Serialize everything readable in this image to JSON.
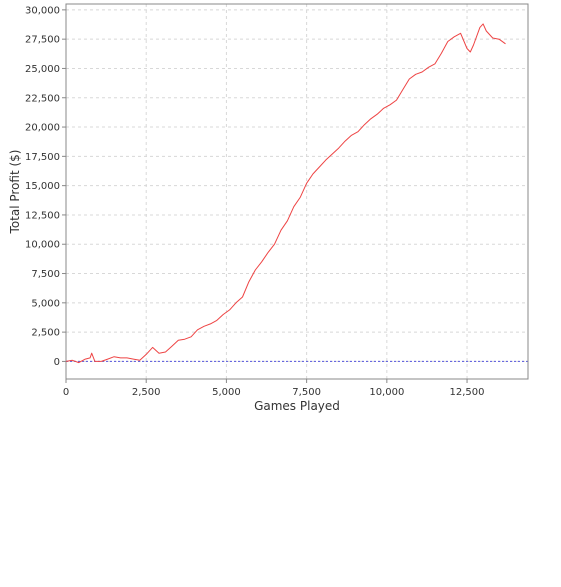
{
  "chart_data": {
    "type": "line",
    "title": "",
    "xlabel": "Games Played",
    "ylabel": "Total Profit ($)",
    "xlim": [
      0,
      14400
    ],
    "ylim": [
      -1500,
      30500
    ],
    "x_ticks": [
      0,
      2500,
      5000,
      7500,
      10000,
      12500
    ],
    "x_tick_labels": [
      "0",
      "2,500",
      "5,000",
      "7,500",
      "10,000",
      "12,500"
    ],
    "y_ticks": [
      0,
      2500,
      5000,
      7500,
      10000,
      12500,
      15000,
      17500,
      20000,
      22500,
      25000,
      27500,
      30000
    ],
    "y_tick_labels": [
      "0",
      "2,500",
      "5,000",
      "7,500",
      "10,000",
      "12,500",
      "15,000",
      "17,500",
      "20,000",
      "22,500",
      "25,000",
      "27,500",
      "30,000"
    ],
    "grid": true,
    "legend": "none",
    "colors": {
      "line": "#ee4444",
      "zero_line": "#5555dd",
      "grid": "#d8d8d8",
      "axis": "#888888"
    },
    "series": [
      {
        "x": [
          0,
          200,
          400,
          600,
          750,
          800,
          900,
          1100,
          1300,
          1500,
          1700,
          1900,
          2100,
          2300,
          2500,
          2700,
          2900,
          3100,
          3300,
          3500,
          3700,
          3900,
          4100,
          4300,
          4500,
          4700,
          4900,
          5100,
          5300,
          5500,
          5700,
          5900,
          6100,
          6300,
          6500,
          6700,
          6900,
          7100,
          7300,
          7500,
          7700,
          7900,
          8100,
          8300,
          8500,
          8700,
          8900,
          9100,
          9300,
          9500,
          9700,
          9900,
          10100,
          10300,
          10500,
          10700,
          10900,
          11100,
          11300,
          11500,
          11700,
          11900,
          12100,
          12300,
          12500,
          12600,
          12700,
          12900,
          13000,
          13100,
          13300,
          13500,
          13700
        ],
        "y": [
          0,
          100,
          -100,
          200,
          300,
          700,
          0,
          0,
          200,
          400,
          300,
          300,
          200,
          100,
          600,
          1200,
          700,
          800,
          1300,
          1800,
          1900,
          2100,
          2700,
          3000,
          3200,
          3500,
          4000,
          4400,
          5000,
          5500,
          6800,
          7800,
          8500,
          9300,
          10000,
          11200,
          12000,
          13200,
          14000,
          15200,
          16000,
          16600,
          17200,
          17700,
          18200,
          18800,
          19300,
          19600,
          20200,
          20700,
          21100,
          21600,
          21900,
          22300,
          23200,
          24100,
          24500,
          24700,
          25100,
          25400,
          26300,
          27300,
          27700,
          28000,
          26700,
          26400,
          27000,
          28500,
          28800,
          28200,
          27600,
          27500,
          27100
        ]
      }
    ]
  }
}
